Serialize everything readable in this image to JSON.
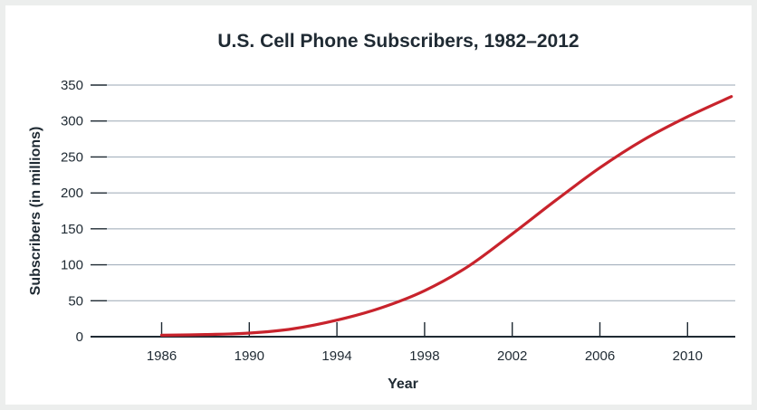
{
  "chart_data": {
    "type": "line",
    "title": "U.S. Cell Phone Subscribers, 1982–2012",
    "xlabel": "Year",
    "ylabel": "Subscribers (in millions)",
    "x_ticks": [
      "1986",
      "1990",
      "1994",
      "1998",
      "2002",
      "2006",
      "2010"
    ],
    "x_tick_values": [
      1986,
      1990,
      1994,
      1998,
      2002,
      2006,
      2010
    ],
    "y_ticks": [
      "0",
      "50",
      "100",
      "150",
      "200",
      "250",
      "300",
      "350"
    ],
    "y_tick_values": [
      0,
      50,
      100,
      150,
      200,
      250,
      300,
      350
    ],
    "xlim": [
      1982,
      2012
    ],
    "ylim": [
      0,
      350
    ],
    "grid": "horizontal",
    "line_color": "#c8232c",
    "series": [
      {
        "x": [
          1986,
          1988,
          1990,
          1992,
          1994,
          1996,
          1998,
          2000,
          2002,
          2004,
          2006,
          2008,
          2010,
          2012
        ],
        "values": [
          2,
          3,
          5,
          11,
          23,
          40,
          64,
          98,
          143,
          190,
          235,
          274,
          306,
          334
        ]
      }
    ]
  }
}
